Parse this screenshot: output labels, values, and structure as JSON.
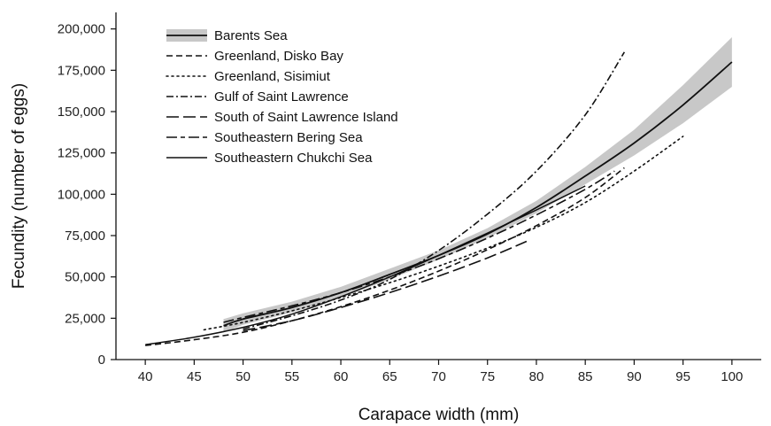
{
  "chart_data": {
    "type": "line",
    "xlabel": "Carapace width (mm)",
    "ylabel": "Fecundity (number of eggs)",
    "xlim": [
      37,
      103
    ],
    "ylim": [
      0,
      210000
    ],
    "x_ticks": [
      40,
      45,
      50,
      55,
      60,
      65,
      70,
      75,
      80,
      85,
      90,
      95,
      100
    ],
    "y_ticks": [
      0,
      25000,
      50000,
      75000,
      100000,
      125000,
      150000,
      175000,
      200000
    ],
    "y_tick_labels": [
      "0",
      "25,000",
      "50,000",
      "75,000",
      "100,000",
      "125,000",
      "150,000",
      "175,000",
      "200,000"
    ],
    "legend_position": "top-left",
    "grid": false,
    "series": [
      {
        "name": "Barents Sea",
        "style": "solid",
        "has_ci_band": true,
        "x": [
          48,
          50,
          55,
          60,
          65,
          70,
          75,
          80,
          85,
          90,
          95,
          100
        ],
        "y": [
          20500,
          24500,
          31500,
          40500,
          51500,
          63000,
          76000,
          92000,
          111000,
          131000,
          154000,
          180000
        ],
        "ci_lower": [
          16500,
          21000,
          28500,
          37500,
          48500,
          60500,
          73500,
          88500,
          106000,
          123500,
          143000,
          165000
        ],
        "ci_upper": [
          24500,
          28000,
          35000,
          44000,
          55000,
          66000,
          79500,
          96000,
          116500,
          139000,
          166000,
          195000
        ]
      },
      {
        "name": "Greenland, Disko Bay",
        "style": "dash",
        "x": [
          40,
          45,
          50,
          55,
          60,
          65,
          70,
          75,
          80,
          85,
          89
        ],
        "y": [
          8500,
          12000,
          16500,
          23500,
          32000,
          42000,
          53500,
          66500,
          81000,
          98000,
          116000
        ]
      },
      {
        "name": "Greenland, Sisimiut",
        "style": "dot",
        "x": [
          46,
          50,
          55,
          60,
          65,
          70,
          75,
          80,
          85,
          90,
          95
        ],
        "y": [
          18000,
          22500,
          29500,
          37500,
          46500,
          56500,
          67500,
          80000,
          95000,
          114000,
          135000
        ]
      },
      {
        "name": "Gulf of Saint Lawrence",
        "style": "dashdot",
        "x": [
          50,
          55,
          60,
          65,
          70,
          75,
          80,
          85,
          89
        ],
        "y": [
          18500,
          26500,
          36000,
          48500,
          66000,
          88000,
          114000,
          148000,
          186000
        ]
      },
      {
        "name": "South of Saint Lawrence Island",
        "style": "longdash",
        "x": [
          50,
          55,
          60,
          65,
          70,
          75,
          79
        ],
        "y": [
          17500,
          23500,
          31500,
          40500,
          50500,
          61500,
          71500
        ]
      },
      {
        "name": "Southeastern Bering Sea",
        "style": "longshortdash",
        "x": [
          48,
          50,
          55,
          60,
          65,
          70,
          75,
          80,
          85,
          88
        ],
        "y": [
          22500,
          25500,
          32500,
          40500,
          50000,
          61000,
          73500,
          87500,
          103000,
          114000
        ]
      },
      {
        "name": "Southeastern Chukchi Sea",
        "style": "solid-thin",
        "x": [
          40,
          45,
          50,
          55,
          60,
          65,
          70,
          75,
          80,
          85
        ],
        "y": [
          9000,
          13500,
          19500,
          27500,
          38000,
          50000,
          63000,
          76500,
          90500,
          105000
        ]
      }
    ]
  }
}
